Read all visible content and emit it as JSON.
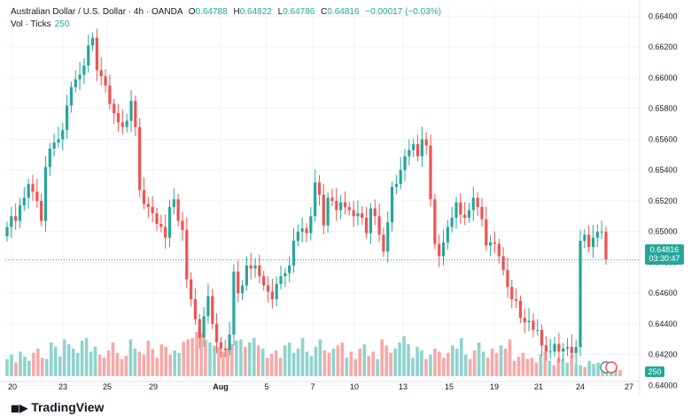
{
  "header": {
    "symbol": "Australian Dollar / U.S. Dollar · 4h · OANDA",
    "open_label": "O",
    "open": "0.64788",
    "high_label": "H",
    "high": "0.64822",
    "low_label": "L",
    "low": "0.64786",
    "close_label": "C",
    "close": "0.64816",
    "change": "−0.00017 (−0.03%)",
    "vol_label": "Vol · Ticks",
    "vol_value": "250"
  },
  "price_tag": {
    "price": "0.64816",
    "countdown": "03:30:47"
  },
  "vol_tag": "250",
  "brand": "TradingView",
  "colors": {
    "up": "#26a69a",
    "down": "#ef5350",
    "vol_up": "#8fd3cd",
    "vol_down": "#f7a9a7",
    "grid": "#f0f3fa",
    "text": "#131722"
  },
  "chart_data": {
    "type": "candlestick",
    "ylim": [
      0.6406,
      0.6646
    ],
    "y_ticks": [
      "0.66400",
      "0.66200",
      "0.66000",
      "0.65800",
      "0.65600",
      "0.65400",
      "0.65200",
      "0.65000",
      "0.64800",
      "0.64600",
      "0.64400",
      "0.64200",
      "0.64000"
    ],
    "x_ticks": [
      "20",
      "23",
      "25",
      "29",
      "Aug",
      "5",
      "7",
      "10",
      "13",
      "15",
      "19",
      "21",
      "24",
      "27"
    ],
    "last_price": 0.64816,
    "candle_count": 114,
    "closes": [
      0.6503,
      0.651,
      0.6507,
      0.6517,
      0.6522,
      0.6531,
      0.6526,
      0.652,
      0.6507,
      0.6542,
      0.6554,
      0.6558,
      0.656,
      0.6566,
      0.6582,
      0.6594,
      0.6599,
      0.6602,
      0.6608,
      0.6621,
      0.6626,
      0.6605,
      0.6601,
      0.6595,
      0.6583,
      0.6577,
      0.6571,
      0.6568,
      0.6572,
      0.6585,
      0.6568,
      0.6527,
      0.6518,
      0.6516,
      0.6512,
      0.6505,
      0.6503,
      0.6496,
      0.6516,
      0.6521,
      0.6507,
      0.6501,
      0.6469,
      0.6456,
      0.6443,
      0.6431,
      0.6445,
      0.6458,
      0.644,
      0.6428,
      0.6424,
      0.6423,
      0.6433,
      0.6474,
      0.646,
      0.6465,
      0.6478,
      0.6476,
      0.6478,
      0.6471,
      0.6465,
      0.6461,
      0.6456,
      0.6466,
      0.6471,
      0.6473,
      0.6478,
      0.6494,
      0.65,
      0.6502,
      0.6499,
      0.651,
      0.6532,
      0.6524,
      0.6504,
      0.6522,
      0.652,
      0.6514,
      0.6519,
      0.6516,
      0.6514,
      0.651,
      0.6512,
      0.6509,
      0.6499,
      0.6515,
      0.651,
      0.6498,
      0.6487,
      0.6506,
      0.6529,
      0.6531,
      0.654,
      0.6549,
      0.6553,
      0.6557,
      0.6549,
      0.656,
      0.6556,
      0.6521,
      0.6492,
      0.6484,
      0.6493,
      0.6503,
      0.6509,
      0.6519,
      0.6511,
      0.6509,
      0.6514,
      0.6522,
      0.6516,
      0.6508,
      0.6491,
      0.6493
    ],
    "tail_closes": [
      0.6492,
      0.6484,
      0.6475,
      0.6464,
      0.6456,
      0.6455,
      0.6444,
      0.6441,
      0.6442,
      0.6436,
      0.6436,
      0.6426,
      0.6422,
      0.6422,
      0.6427,
      0.6422,
      0.6424,
      0.6425,
      0.6421,
      0.6425,
      0.6494,
      0.6498,
      0.649,
      0.6496,
      0.65,
      0.65,
      0.6482
    ],
    "volumes": [
      28,
      35,
      22,
      40,
      32,
      25,
      38,
      45,
      30,
      28,
      55,
      48,
      32,
      60,
      52,
      45,
      38,
      58,
      62,
      40,
      48,
      35,
      30,
      42,
      55,
      38,
      28,
      33,
      60,
      45,
      40,
      35,
      58,
      44,
      30,
      52,
      48,
      35,
      42,
      38,
      56,
      60,
      62,
      72,
      70,
      60,
      55,
      50,
      48,
      40,
      45,
      52,
      58,
      60,
      48,
      55,
      62,
      50,
      45,
      30,
      36,
      42,
      30,
      50,
      55,
      38,
      45,
      62,
      40,
      33,
      48,
      60,
      42,
      38,
      45,
      50,
      55,
      30,
      40,
      28,
      45,
      52,
      33,
      40,
      28,
      60,
      50,
      38,
      45,
      55,
      65,
      52,
      30,
      48,
      42,
      28,
      35,
      45,
      40,
      30,
      38,
      50,
      45,
      62,
      35,
      28,
      42,
      55,
      40,
      30,
      45,
      38,
      50,
      45,
      60,
      25,
      32,
      38,
      28,
      30,
      22,
      36,
      40,
      25,
      18,
      30,
      28,
      22,
      35,
      20,
      18,
      15,
      25,
      20,
      22,
      18,
      15,
      16,
      12,
      10
    ]
  }
}
